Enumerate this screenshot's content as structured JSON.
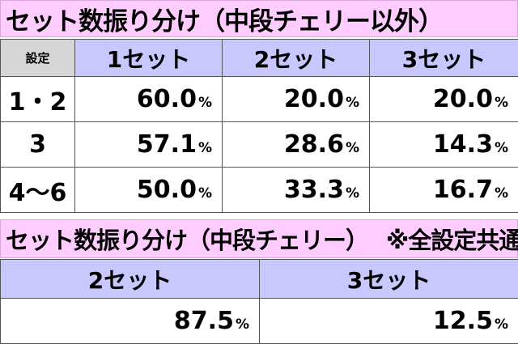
{
  "table1": {
    "title": "セット数振り分け（中段チェリー以外）",
    "corner_label": "設定",
    "headers": [
      "1セット",
      "2セット",
      "3セット"
    ],
    "rows": [
      {
        "setting": "1・2",
        "values": [
          "60.0",
          "20.0",
          "20.0"
        ]
      },
      {
        "setting": "3",
        "values": [
          "57.1",
          "28.6",
          "14.3"
        ]
      },
      {
        "setting": "4〜6",
        "values": [
          "50.0",
          "33.3",
          "16.7"
        ]
      }
    ]
  },
  "table2": {
    "title": "セット数振り分け（中段チェリー）",
    "note": "※全設定共通",
    "headers": [
      "2セット",
      "3セット"
    ],
    "values": [
      "87.5",
      "12.5"
    ]
  },
  "percent_symbol": "%",
  "colors": {
    "title_bg": "#ffccff",
    "header_bg": "#c8c8ff",
    "corner_bg": "#d6d6d6"
  }
}
